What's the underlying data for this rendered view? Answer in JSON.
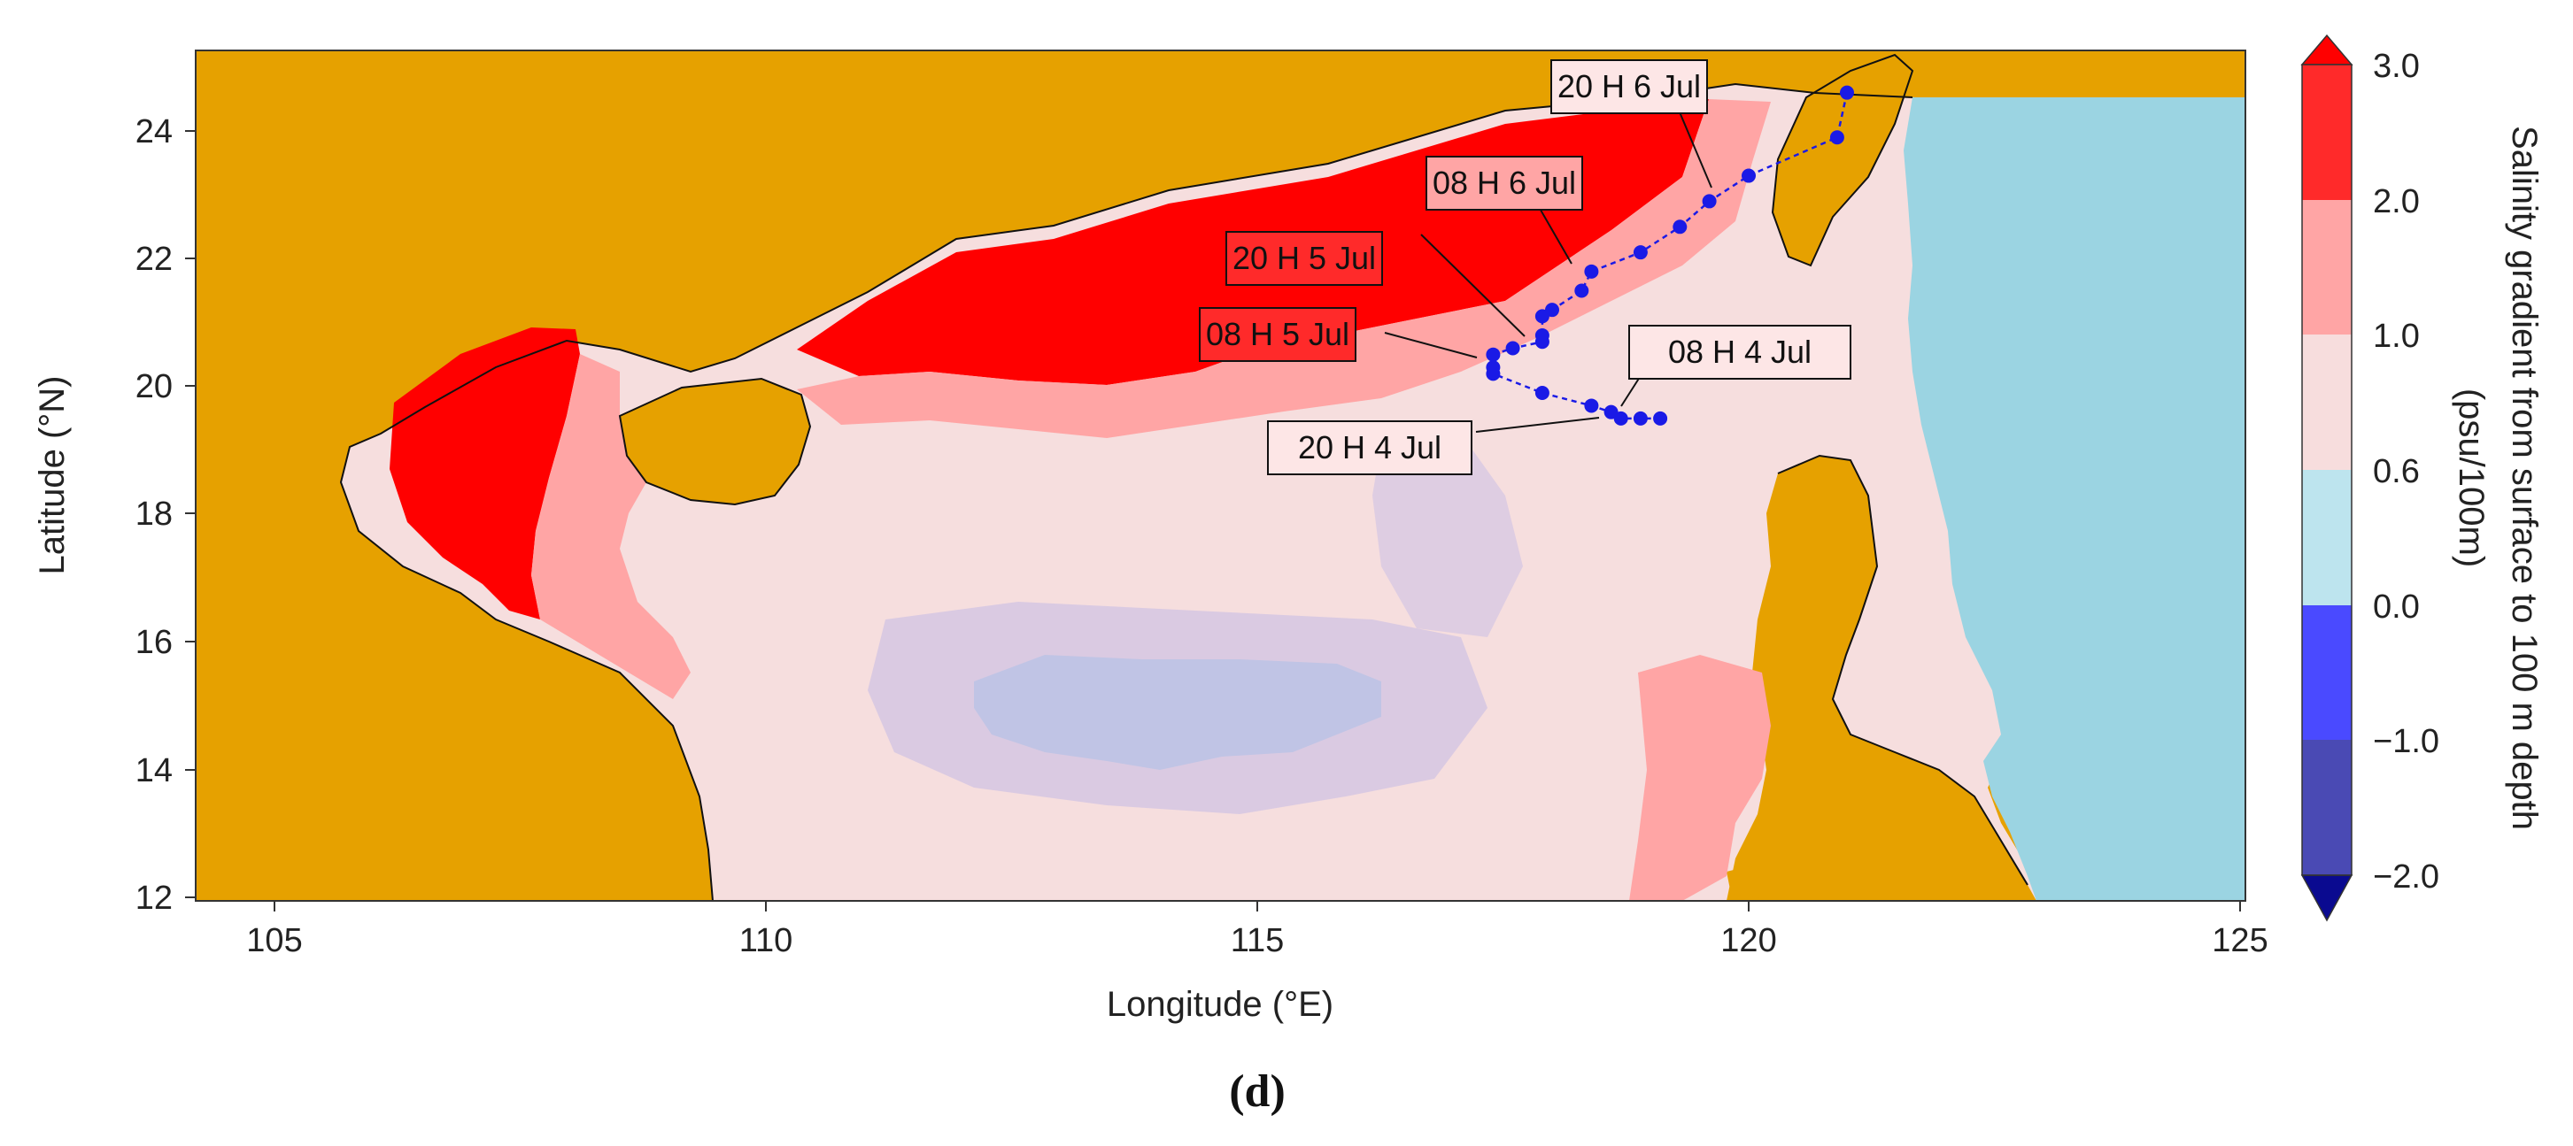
{
  "map": {
    "xaxis": {
      "label": "Longitude (°E)",
      "ticks": [
        "105",
        "110",
        "115",
        "120",
        "125"
      ]
    },
    "yaxis": {
      "label": "Latitude (°N)",
      "ticks": [
        "24",
        "22",
        "20",
        "18",
        "16",
        "14",
        "12"
      ]
    },
    "land_color": "#e6a100",
    "ocean_base_color": "#f6dede",
    "track_color": "#1a1ae6",
    "track_labels": [
      "20 H 6 Jul",
      "08 H 6 Jul",
      "20 H 5 Jul",
      "08 H 5 Jul",
      "08 H 4 Jul",
      "20 H 4 Jul"
    ],
    "track_points": [
      {
        "lon": 121.0,
        "lat": 24.6
      },
      {
        "lon": 120.9,
        "lat": 23.9
      },
      {
        "lon": 120.0,
        "lat": 23.3
      },
      {
        "lon": 119.6,
        "lat": 22.9
      },
      {
        "lon": 119.3,
        "lat": 22.5
      },
      {
        "lon": 118.9,
        "lat": 22.1
      },
      {
        "lon": 118.4,
        "lat": 21.8
      },
      {
        "lon": 118.3,
        "lat": 21.5
      },
      {
        "lon": 118.0,
        "lat": 21.2
      },
      {
        "lon": 117.9,
        "lat": 21.1
      },
      {
        "lon": 117.9,
        "lat": 20.8
      },
      {
        "lon": 117.9,
        "lat": 20.7
      },
      {
        "lon": 117.6,
        "lat": 20.6
      },
      {
        "lon": 117.4,
        "lat": 20.5
      },
      {
        "lon": 117.4,
        "lat": 20.3
      },
      {
        "lon": 117.4,
        "lat": 20.2
      },
      {
        "lon": 117.9,
        "lat": 19.9
      },
      {
        "lon": 118.4,
        "lat": 19.7
      },
      {
        "lon": 118.6,
        "lat": 19.6
      },
      {
        "lon": 118.7,
        "lat": 19.5
      },
      {
        "lon": 118.9,
        "lat": 19.5
      },
      {
        "lon": 119.1,
        "lat": 19.5
      }
    ]
  },
  "colorbar": {
    "label_line1": "Salinity gradient from surface to 100 m depth",
    "label_line2": "(psu/100m)",
    "ticks": [
      "3.0",
      "2.0",
      "1.0",
      "0.6",
      "0.0",
      "−1.0",
      "−2.0"
    ],
    "colors": [
      "#ff2a2a",
      "#ffa5a5",
      "#f7dddd",
      "#bde4ee",
      "#4a4aff",
      "#4a4ab4"
    ],
    "extend_max_color": "#ff0000",
    "extend_min_color": "#0a0a90"
  },
  "caption": "(d)"
}
